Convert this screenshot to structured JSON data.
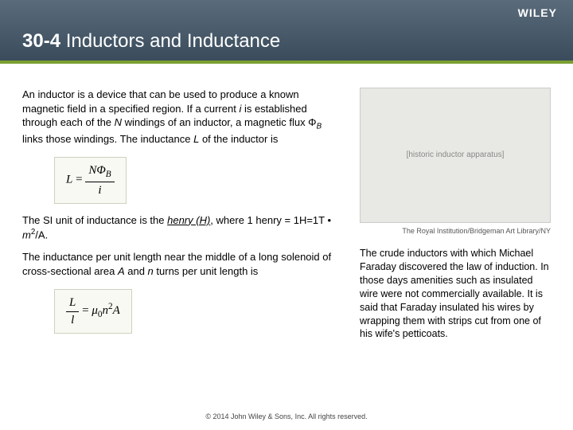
{
  "header": {
    "brand": "WILEY",
    "section_number": "30-4",
    "section_title": "Inductors and Inductance"
  },
  "left": {
    "para1_prefix": "An inductor is a device that can be used to produce a known magnetic field in a specified region. If a current ",
    "para1_i": "i",
    "para1_mid1": " is established through each of the ",
    "para1_N": "N",
    "para1_mid2": " windings of an inductor, a magnetic flux Φ",
    "para1_B": "B",
    "para1_mid3": " links those windings. The inductance ",
    "para1_L": "L",
    "para1_suffix": " of the inductor is",
    "formula1_lhs": "L",
    "formula1_eq": " = ",
    "formula1_num": "NΦ",
    "formula1_num_sub": "B",
    "formula1_den": "i",
    "para2_prefix": "The SI unit of inductance is the ",
    "para2_henry": "henry (H)",
    "para2_mid": ", where 1 henry = 1H=1T",
    "para2_dot": " • ",
    "para2_m": "m",
    "para2_exp": "2",
    "para2_suffix": "/A.",
    "para3_prefix": "The inductance per unit length near the middle of a long solenoid of cross-sectional area ",
    "para3_A": "A",
    "para3_mid": " and ",
    "para3_n": "n",
    "para3_suffix": " turns per unit length is",
    "formula2_num": "L",
    "formula2_den": "l",
    "formula2_eq": " = ",
    "formula2_mu": "μ",
    "formula2_mu_sub": "0",
    "formula2_n": "n",
    "formula2_n_exp": "2",
    "formula2_A": "A"
  },
  "right": {
    "image_alt": "[historic inductor apparatus]",
    "image_credit": "The Royal Institution/Bridgeman Art Library/NY",
    "caption": "The crude inductors with which Michael Faraday discovered the law of induction. In those days amenities such as insulated wire were not commercially available. It is said that Faraday insulated his wires by wrapping them with strips cut from one of his wife's petticoats."
  },
  "footer": {
    "copyright": "© 2014 John Wiley & Sons, Inc. All rights reserved."
  }
}
